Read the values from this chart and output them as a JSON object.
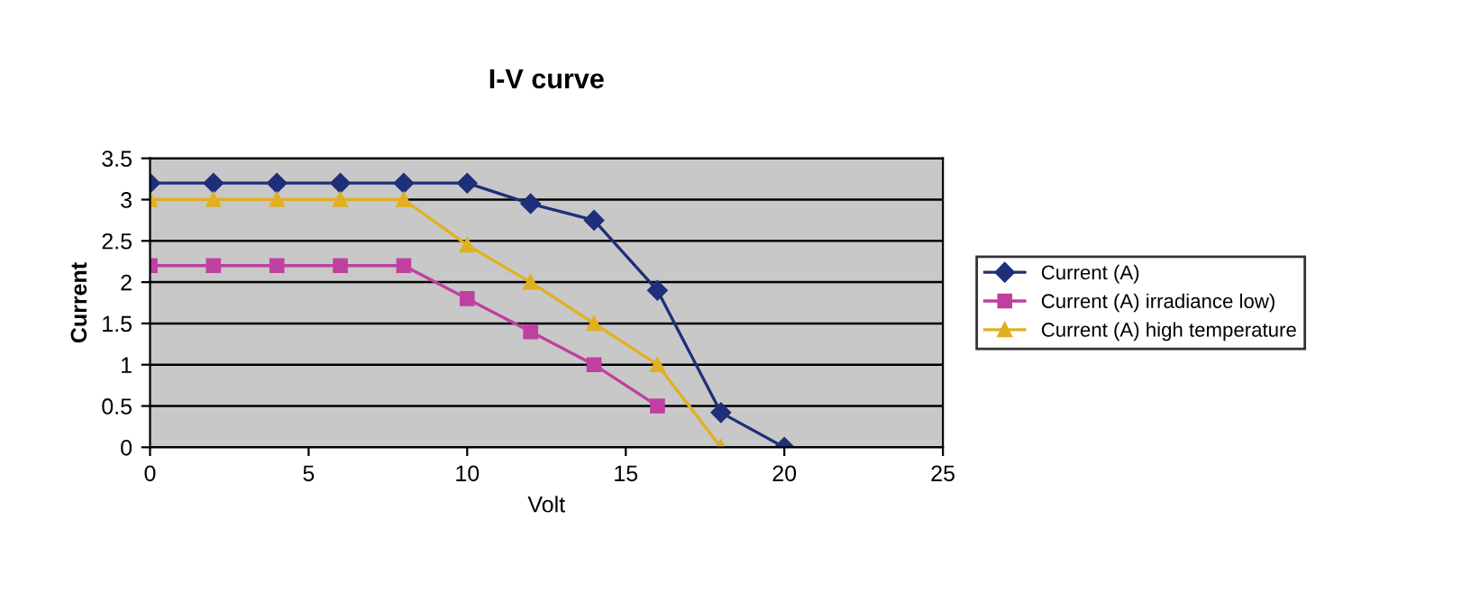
{
  "chart_data": {
    "type": "line",
    "title": "I-V curve",
    "xlabel": "Volt",
    "ylabel": "Current",
    "xlim": [
      0,
      25
    ],
    "xticks": [
      0,
      5,
      10,
      15,
      20,
      25
    ],
    "ylim": [
      0,
      3.5
    ],
    "yticks": [
      0,
      0.5,
      1,
      1.5,
      2,
      2.5,
      3,
      3.5
    ],
    "grid": "y",
    "legend": "right",
    "series": [
      {
        "name": "Current (A)",
        "color": "#1f2f7a",
        "marker": "diamond",
        "x": [
          0,
          2,
          4,
          6,
          8,
          10,
          12,
          14,
          16,
          18,
          20
        ],
        "values": [
          3.2,
          3.2,
          3.2,
          3.2,
          3.2,
          3.2,
          2.95,
          2.75,
          1.9,
          0.42,
          0
        ]
      },
      {
        "name": "Current (A) irradiance low)",
        "color": "#c040a0",
        "marker": "square",
        "x": [
          0,
          2,
          4,
          6,
          8,
          10,
          12,
          14,
          16
        ],
        "values": [
          2.2,
          2.2,
          2.2,
          2.2,
          2.2,
          1.8,
          1.4,
          1.0,
          0.5
        ]
      },
      {
        "name": "Current (A) high temperature",
        "color": "#e0b020",
        "marker": "triangle",
        "x": [
          0,
          2,
          4,
          6,
          8,
          10,
          12,
          14,
          16,
          18
        ],
        "values": [
          3.0,
          3.0,
          3.0,
          3.0,
          3.0,
          2.45,
          2.0,
          1.5,
          1.0,
          0
        ]
      }
    ]
  }
}
